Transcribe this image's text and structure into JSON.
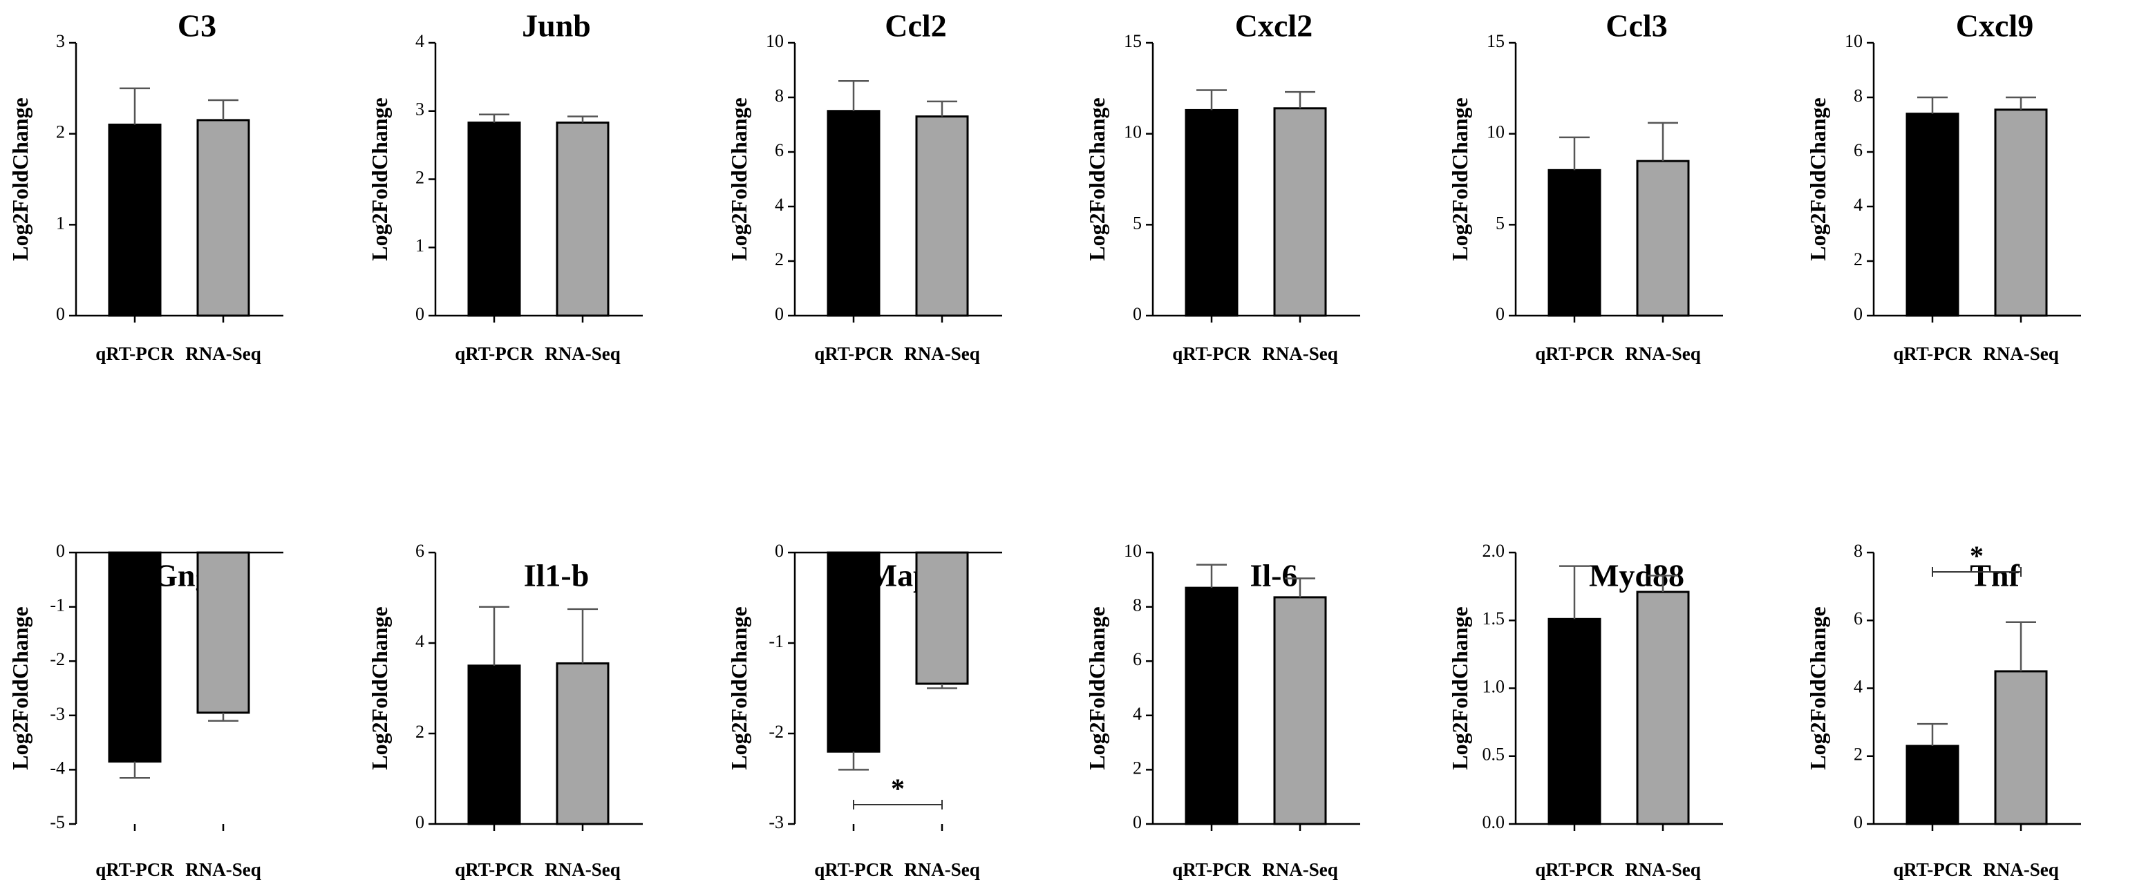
{
  "figure": {
    "ylabel": "Log2FoldChange",
    "categories": [
      "qRT-PCR",
      "RNA-Seq"
    ],
    "colors": {
      "qRT-PCR": "#000000",
      "RNA-Seq": "#a6a6a6",
      "error": "#555555"
    }
  },
  "chart_data": [
    {
      "type": "bar",
      "title": "C3",
      "ylabel": "Log2FoldChange",
      "categories": [
        "qRT-PCR",
        "RNA-Seq"
      ],
      "values": [
        2.1,
        2.15
      ],
      "errors": [
        0.4,
        0.22
      ],
      "ylim": [
        0,
        3
      ],
      "yticks": [
        0,
        1,
        2,
        3
      ],
      "tick_labels": [
        "0",
        "1",
        "2",
        "3"
      ],
      "significance": ""
    },
    {
      "type": "bar",
      "title": "Junb",
      "ylabel": "Log2FoldChange",
      "categories": [
        "qRT-PCR",
        "RNA-Seq"
      ],
      "values": [
        2.83,
        2.83
      ],
      "errors": [
        0.12,
        0.09
      ],
      "ylim": [
        0,
        4
      ],
      "yticks": [
        0,
        1,
        2,
        3,
        4
      ],
      "tick_labels": [
        "0",
        "1",
        "2",
        "3",
        "4"
      ],
      "significance": ""
    },
    {
      "type": "bar",
      "title": "Ccl2",
      "ylabel": "Log2FoldChange",
      "categories": [
        "qRT-PCR",
        "RNA-Seq"
      ],
      "values": [
        7.5,
        7.3
      ],
      "errors": [
        1.1,
        0.55
      ],
      "ylim": [
        0,
        10
      ],
      "yticks": [
        0,
        2,
        4,
        6,
        8,
        10
      ],
      "tick_labels": [
        "0",
        "2",
        "4",
        "6",
        "8",
        "10"
      ],
      "significance": ""
    },
    {
      "type": "bar",
      "title": "Cxcl2",
      "ylabel": "Log2FoldChange",
      "categories": [
        "qRT-PCR",
        "RNA-Seq"
      ],
      "values": [
        11.3,
        11.4
      ],
      "errors": [
        1.1,
        0.9
      ],
      "ylim": [
        0,
        15
      ],
      "yticks": [
        0,
        5,
        10,
        15
      ],
      "tick_labels": [
        "0",
        "5",
        "10",
        "15"
      ],
      "significance": ""
    },
    {
      "type": "bar",
      "title": "Ccl3",
      "ylabel": "Log2FoldChange",
      "categories": [
        "qRT-PCR",
        "RNA-Seq"
      ],
      "values": [
        8.0,
        8.5
      ],
      "errors": [
        1.8,
        2.1
      ],
      "ylim": [
        0,
        15
      ],
      "yticks": [
        0,
        5,
        10,
        15
      ],
      "tick_labels": [
        "0",
        "5",
        "10",
        "15"
      ],
      "significance": ""
    },
    {
      "type": "bar",
      "title": "Cxcl9",
      "ylabel": "Log2FoldChange",
      "categories": [
        "qRT-PCR",
        "RNA-Seq"
      ],
      "values": [
        7.4,
        7.55
      ],
      "errors": [
        0.6,
        0.45
      ],
      "ylim": [
        0,
        10
      ],
      "yticks": [
        0,
        2,
        4,
        6,
        8,
        10
      ],
      "tick_labels": [
        "0",
        "2",
        "4",
        "6",
        "8",
        "10"
      ],
      "significance": ""
    },
    {
      "type": "bar",
      "title": "Gng11",
      "ylabel": "Log2FoldChange",
      "categories": [
        "qRT-PCR",
        "RNA-Seq"
      ],
      "values": [
        -3.85,
        -2.95
      ],
      "errors": [
        0.3,
        0.15
      ],
      "ylim": [
        -5,
        0
      ],
      "yticks": [
        0,
        -1,
        -2,
        -3,
        -4,
        -5
      ],
      "tick_labels": [
        "0",
        "-1",
        "-2",
        "-3",
        "-4",
        "-5"
      ],
      "significance": ""
    },
    {
      "type": "bar",
      "title": "Il1-b",
      "ylabel": "Log2FoldChange",
      "categories": [
        "qRT-PCR",
        "RNA-Seq"
      ],
      "values": [
        3.5,
        3.55
      ],
      "errors": [
        1.3,
        1.2
      ],
      "ylim": [
        0,
        6
      ],
      "yticks": [
        0,
        2,
        4,
        6
      ],
      "tick_labels": [
        "0",
        "2",
        "4",
        "6"
      ],
      "significance": ""
    },
    {
      "type": "bar",
      "title": "Mapk3",
      "ylabel": "Log2FoldChange",
      "categories": [
        "qRT-PCR",
        "RNA-Seq"
      ],
      "values": [
        -2.2,
        -1.45
      ],
      "errors": [
        0.2,
        0.05
      ],
      "ylim": [
        -3,
        0
      ],
      "yticks": [
        0,
        -1,
        -2,
        -3
      ],
      "tick_labels": [
        "0",
        "-1",
        "-2",
        "-3"
      ],
      "significance": "*"
    },
    {
      "type": "bar",
      "title": "Il-6",
      "ylabel": "Log2FoldChange",
      "categories": [
        "qRT-PCR",
        "RNA-Seq"
      ],
      "values": [
        8.7,
        8.35
      ],
      "errors": [
        0.85,
        0.7
      ],
      "ylim": [
        0,
        10
      ],
      "yticks": [
        0,
        2,
        4,
        6,
        8,
        10
      ],
      "tick_labels": [
        "0",
        "2",
        "4",
        "6",
        "8",
        "10"
      ],
      "significance": ""
    },
    {
      "type": "bar",
      "title": "Myd88",
      "ylabel": "Log2FoldChange",
      "categories": [
        "qRT-PCR",
        "RNA-Seq"
      ],
      "values": [
        1.51,
        1.71
      ],
      "errors": [
        0.39,
        0.12
      ],
      "ylim": [
        0,
        2
      ],
      "yticks": [
        0,
        0.5,
        1,
        1.5,
        2
      ],
      "tick_labels": [
        "0.0",
        "0.5",
        "1.0",
        "1.5",
        "2.0"
      ],
      "significance": ""
    },
    {
      "type": "bar",
      "title": "Tnf",
      "ylabel": "Log2FoldChange",
      "categories": [
        "qRT-PCR",
        "RNA-Seq"
      ],
      "values": [
        2.3,
        4.5
      ],
      "errors": [
        0.65,
        1.45
      ],
      "ylim": [
        0,
        8
      ],
      "yticks": [
        0,
        2,
        4,
        6,
        8
      ],
      "tick_labels": [
        "0",
        "2",
        "4",
        "6",
        "8"
      ],
      "significance": "*"
    }
  ]
}
